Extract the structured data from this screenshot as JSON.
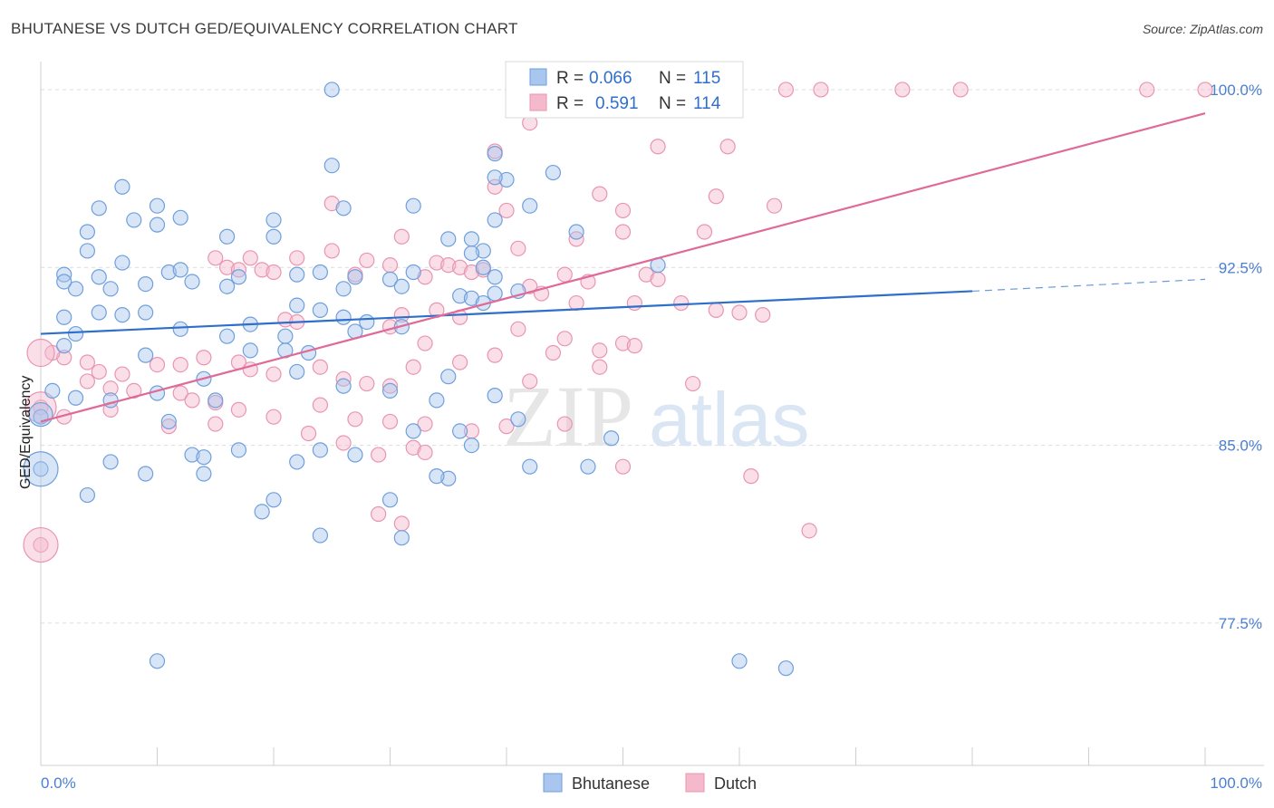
{
  "header": {
    "title": "BHUTANESE VS DUTCH GED/EQUIVALENCY CORRELATION CHART",
    "source": "Source: ZipAtlas.com"
  },
  "watermark": {
    "zip": "ZIP",
    "atlas": "atlas"
  },
  "colors": {
    "bhutanese_fill": "#a9c6ee",
    "bhutanese_stroke": "#6f9fdc",
    "bhutanese_line": "#2e6fcb",
    "dutch_fill": "#f5b9cc",
    "dutch_stroke": "#e995b2",
    "dutch_line": "#e06a97",
    "tick_text": "#4a7fd0",
    "grid": "#dcdcdc"
  },
  "legend": {
    "r_label": "R =",
    "n_label": "N =",
    "rows": [
      {
        "r": "0.066",
        "n": "115"
      },
      {
        "r": "0.591",
        "n": "114"
      }
    ]
  },
  "chart_data": {
    "type": "scatter",
    "title": "BHUTANESE VS DUTCH GED/EQUIVALENCY CORRELATION CHART",
    "xlabel": "",
    "ylabel": "GED/Equivalency",
    "xlim": [
      0,
      100
    ],
    "ylim": [
      71.5,
      100.8
    ],
    "x_tick_labels": [
      "0.0%",
      "100.0%"
    ],
    "y_ticks": [
      77.5,
      85.0,
      92.5,
      100.0
    ],
    "y_tick_labels": [
      "77.5%",
      "85.0%",
      "92.5%",
      "100.0%"
    ],
    "grid": "horizontal dashed",
    "legend_position": "top-center",
    "series": [
      {
        "name": "Bhutanese",
        "r": 0.066,
        "n": 115,
        "trend": {
          "x0": 0,
          "y0": 89.7,
          "x1": 80,
          "y1": 91.5,
          "dashed_to_x": 100,
          "dashed_to_y": 92.0
        },
        "points": [
          [
            25,
            100
          ],
          [
            43,
            100
          ],
          [
            25,
            96.8
          ],
          [
            39,
            97.3
          ],
          [
            40,
            96.2
          ],
          [
            44,
            96.5
          ],
          [
            7,
            95.9
          ],
          [
            39,
            96.3
          ],
          [
            5,
            95.0
          ],
          [
            8,
            94.5
          ],
          [
            10,
            95.1
          ],
          [
            12,
            94.6
          ],
          [
            20,
            94.5
          ],
          [
            26,
            95.0
          ],
          [
            32,
            95.1
          ],
          [
            42,
            95.1
          ],
          [
            4,
            94.0
          ],
          [
            10,
            94.3
          ],
          [
            4,
            93.2
          ],
          [
            16,
            93.8
          ],
          [
            20,
            93.8
          ],
          [
            35,
            93.7
          ],
          [
            37,
            93.7
          ],
          [
            38,
            93.2
          ],
          [
            39,
            94.5
          ],
          [
            46,
            94.0
          ],
          [
            2,
            92.2
          ],
          [
            3,
            91.6
          ],
          [
            5,
            92.1
          ],
          [
            7,
            92.7
          ],
          [
            11,
            92.3
          ],
          [
            12,
            92.4
          ],
          [
            17,
            92.1
          ],
          [
            22,
            92.2
          ],
          [
            24,
            92.3
          ],
          [
            27,
            92.1
          ],
          [
            30,
            92.0
          ],
          [
            32,
            92.3
          ],
          [
            37,
            93.1
          ],
          [
            38,
            92.5
          ],
          [
            39,
            92.1
          ],
          [
            2,
            91.9
          ],
          [
            6,
            91.6
          ],
          [
            9,
            91.8
          ],
          [
            13,
            91.9
          ],
          [
            16,
            91.7
          ],
          [
            26,
            91.6
          ],
          [
            31,
            91.7
          ],
          [
            36,
            91.3
          ],
          [
            37,
            91.2
          ],
          [
            38,
            91.0
          ],
          [
            39,
            91.4
          ],
          [
            41,
            91.5
          ],
          [
            53,
            92.6
          ],
          [
            2,
            90.4
          ],
          [
            5,
            90.6
          ],
          [
            7,
            90.5
          ],
          [
            9,
            90.6
          ],
          [
            18,
            90.1
          ],
          [
            22,
            90.9
          ],
          [
            24,
            90.7
          ],
          [
            26,
            90.4
          ],
          [
            28,
            90.2
          ],
          [
            31,
            90.0
          ],
          [
            3,
            89.7
          ],
          [
            12,
            89.9
          ],
          [
            16,
            89.6
          ],
          [
            21,
            89.6
          ],
          [
            27,
            89.8
          ],
          [
            2,
            89.2
          ],
          [
            9,
            88.8
          ],
          [
            18,
            89.0
          ],
          [
            21,
            89.0
          ],
          [
            23,
            88.9
          ],
          [
            35,
            87.9
          ],
          [
            1,
            87.3
          ],
          [
            3,
            87.0
          ],
          [
            6,
            86.9
          ],
          [
            10,
            87.2
          ],
          [
            14,
            87.8
          ],
          [
            15,
            86.9
          ],
          [
            22,
            88.1
          ],
          [
            26,
            87.5
          ],
          [
            30,
            87.3
          ],
          [
            34,
            86.9
          ],
          [
            39,
            87.1
          ],
          [
            41,
            86.1
          ],
          [
            0,
            86.2
          ],
          [
            11,
            86.0
          ],
          [
            13,
            84.6
          ],
          [
            14,
            84.5
          ],
          [
            17,
            84.8
          ],
          [
            22,
            84.3
          ],
          [
            24,
            84.8
          ],
          [
            27,
            84.6
          ],
          [
            32,
            85.6
          ],
          [
            37,
            85.0
          ],
          [
            6,
            84.3
          ],
          [
            9,
            83.8
          ],
          [
            14,
            83.8
          ],
          [
            30,
            82.7
          ],
          [
            36,
            85.6
          ],
          [
            42,
            84.1
          ],
          [
            0,
            84.0
          ],
          [
            4,
            82.9
          ],
          [
            19,
            82.2
          ],
          [
            20,
            82.7
          ],
          [
            35,
            83.6
          ],
          [
            47,
            84.1
          ],
          [
            49,
            85.3
          ],
          [
            24,
            81.2
          ],
          [
            31,
            81.1
          ],
          [
            34,
            83.7
          ],
          [
            10,
            75.9
          ],
          [
            60,
            75.9
          ],
          [
            64,
            75.6
          ]
        ],
        "sizes_large": [
          [
            0,
            84.0,
            15
          ],
          [
            0,
            86.3,
            9
          ]
        ]
      },
      {
        "name": "Dutch",
        "r": 0.591,
        "n": 114,
        "trend": {
          "x0": 0,
          "y0": 86.0,
          "x1": 100,
          "y1": 99.0
        },
        "points": [
          [
            64,
            100
          ],
          [
            67,
            100
          ],
          [
            74,
            100
          ],
          [
            79,
            100
          ],
          [
            95,
            100
          ],
          [
            100,
            100
          ],
          [
            42,
            98.6
          ],
          [
            39,
            97.4
          ],
          [
            53,
            97.6
          ],
          [
            59,
            97.6
          ],
          [
            39,
            95.9
          ],
          [
            48,
            95.6
          ],
          [
            58,
            95.5
          ],
          [
            63,
            95.1
          ],
          [
            25,
            95.2
          ],
          [
            40,
            94.9
          ],
          [
            50,
            94.9
          ],
          [
            50,
            94.0
          ],
          [
            57,
            94.0
          ],
          [
            31,
            93.8
          ],
          [
            46,
            93.7
          ],
          [
            41,
            93.3
          ],
          [
            15,
            92.9
          ],
          [
            16,
            92.5
          ],
          [
            18,
            92.9
          ],
          [
            22,
            92.9
          ],
          [
            25,
            93.2
          ],
          [
            28,
            92.8
          ],
          [
            30,
            92.6
          ],
          [
            34,
            92.7
          ],
          [
            35,
            92.6
          ],
          [
            36,
            92.5
          ],
          [
            38,
            92.4
          ],
          [
            45,
            92.2
          ],
          [
            52,
            92.2
          ],
          [
            53,
            92.0
          ],
          [
            17,
            92.4
          ],
          [
            19,
            92.4
          ],
          [
            20,
            92.3
          ],
          [
            27,
            92.2
          ],
          [
            33,
            92.1
          ],
          [
            37,
            92.3
          ],
          [
            42,
            91.7
          ],
          [
            47,
            91.9
          ],
          [
            43,
            91.4
          ],
          [
            46,
            91.0
          ],
          [
            51,
            91.0
          ],
          [
            55,
            91.0
          ],
          [
            58,
            90.7
          ],
          [
            60,
            90.6
          ],
          [
            62,
            90.5
          ],
          [
            21,
            90.3
          ],
          [
            22,
            90.2
          ],
          [
            30,
            90.0
          ],
          [
            31,
            90.5
          ],
          [
            34,
            90.7
          ],
          [
            36,
            90.4
          ],
          [
            41,
            89.9
          ],
          [
            45,
            89.5
          ],
          [
            50,
            89.3
          ],
          [
            33,
            89.3
          ],
          [
            39,
            88.8
          ],
          [
            44,
            88.9
          ],
          [
            48,
            89.0
          ],
          [
            51,
            89.2
          ],
          [
            2,
            88.7
          ],
          [
            4,
            88.5
          ],
          [
            5,
            88.1
          ],
          [
            7,
            88.0
          ],
          [
            10,
            88.4
          ],
          [
            12,
            88.4
          ],
          [
            14,
            88.7
          ],
          [
            17,
            88.5
          ],
          [
            18,
            88.2
          ],
          [
            20,
            88.0
          ],
          [
            24,
            88.3
          ],
          [
            26,
            87.8
          ],
          [
            28,
            87.6
          ],
          [
            30,
            87.5
          ],
          [
            32,
            88.3
          ],
          [
            36,
            88.5
          ],
          [
            42,
            87.7
          ],
          [
            48,
            88.3
          ],
          [
            56,
            87.6
          ],
          [
            1,
            88.9
          ],
          [
            4,
            87.7
          ],
          [
            6,
            87.4
          ],
          [
            8,
            87.3
          ],
          [
            12,
            87.2
          ],
          [
            13,
            86.9
          ],
          [
            15,
            86.8
          ],
          [
            17,
            86.5
          ],
          [
            20,
            86.2
          ],
          [
            24,
            86.7
          ],
          [
            27,
            86.1
          ],
          [
            30,
            86.0
          ],
          [
            33,
            85.9
          ],
          [
            37,
            85.6
          ],
          [
            40,
            85.8
          ],
          [
            45,
            85.9
          ],
          [
            0,
            86.6
          ],
          [
            2,
            86.2
          ],
          [
            6,
            86.5
          ],
          [
            11,
            85.8
          ],
          [
            15,
            85.9
          ],
          [
            23,
            85.5
          ],
          [
            26,
            85.1
          ],
          [
            29,
            84.6
          ],
          [
            32,
            84.9
          ],
          [
            33,
            84.7
          ],
          [
            50,
            84.1
          ],
          [
            61,
            83.7
          ],
          [
            29,
            82.1
          ],
          [
            31,
            81.7
          ],
          [
            0,
            80.8
          ],
          [
            66,
            81.4
          ]
        ],
        "sizes_large": [
          [
            0,
            80.8,
            15
          ],
          [
            0,
            86.6,
            13
          ],
          [
            0,
            88.9,
            11
          ]
        ]
      }
    ]
  },
  "bottom_legend": {
    "items": [
      "Bhutanese",
      "Dutch"
    ]
  }
}
